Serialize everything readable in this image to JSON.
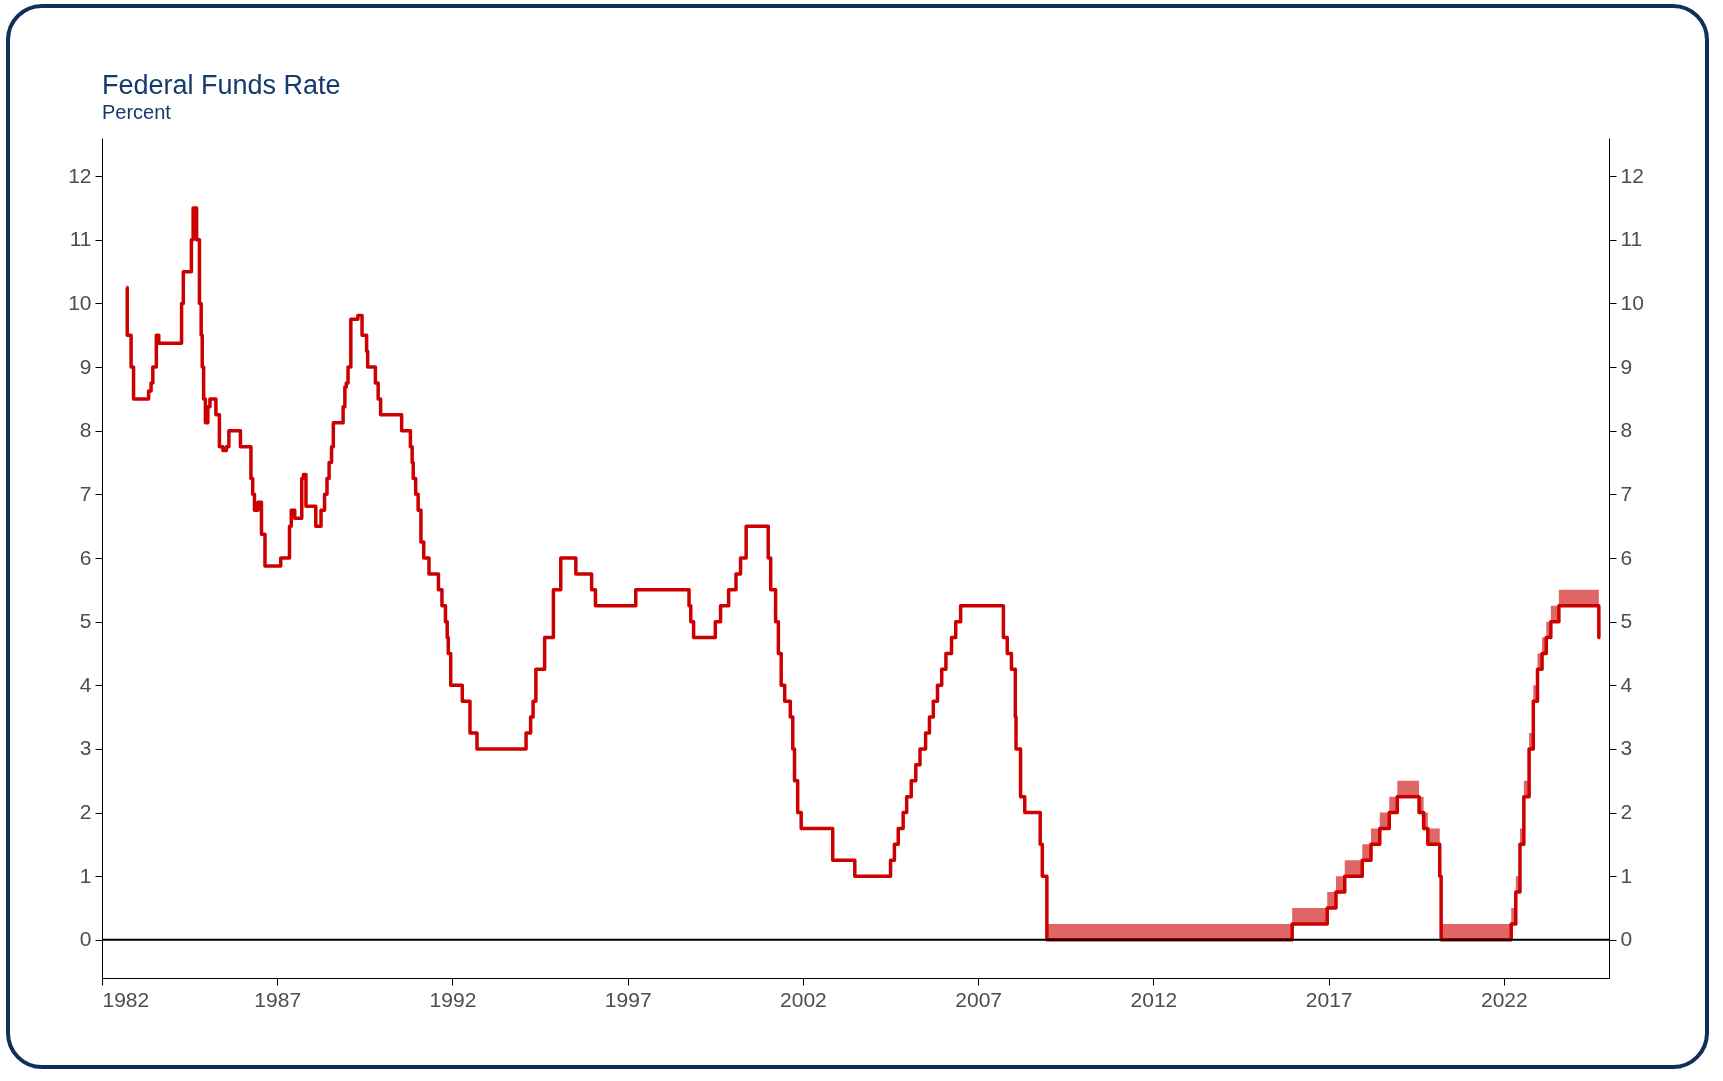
{
  "chart_data": {
    "type": "step",
    "title": "Federal Funds Rate",
    "subtitle": "Percent",
    "x": [
      1982.7,
      1982.72,
      1982.83,
      1982.9,
      1983.33,
      1983.4,
      1983.45,
      1983.55,
      1983.62,
      1984.27,
      1984.32,
      1984.55,
      1984.6,
      1984.7,
      1984.78,
      1984.83,
      1984.86,
      1984.9,
      1984.95,
      1985.02,
      1985.08,
      1985.25,
      1985.35,
      1985.45,
      1985.55,
      1985.62,
      1985.95,
      1986.25,
      1986.3,
      1986.35,
      1986.45,
      1986.55,
      1986.65,
      1987.1,
      1987.35,
      1987.4,
      1987.5,
      1987.7,
      1987.75,
      1987.82,
      1988.1,
      1988.25,
      1988.35,
      1988.42,
      1988.48,
      1988.55,
      1988.6,
      1988.88,
      1988.93,
      1988.97,
      1989.02,
      1989.1,
      1989.3,
      1989.42,
      1989.55,
      1989.58,
      1989.8,
      1989.88,
      1989.95,
      1990.55,
      1990.8,
      1990.85,
      1990.88,
      1990.95,
      1991.02,
      1991.1,
      1991.18,
      1991.33,
      1991.6,
      1991.7,
      1991.8,
      1991.85,
      1991.88,
      1991.95,
      1992.28,
      1992.5,
      1992.7,
      1994.1,
      1994.23,
      1994.3,
      1994.38,
      1994.63,
      1994.88,
      1995.09,
      1995.52,
      1995.97,
      1996.08,
      1997.23,
      1998.75,
      1998.8,
      1998.88,
      1999.5,
      1999.65,
      1999.88,
      2000.09,
      2000.22,
      2000.38,
      2001.01,
      2001.08,
      2001.22,
      2001.3,
      2001.38,
      2001.48,
      2001.64,
      2001.71,
      2001.76,
      2001.85,
      2001.95,
      2002.85,
      2003.48,
      2004.5,
      2004.61,
      2004.72,
      2004.86,
      2004.96,
      2005.09,
      2005.22,
      2005.34,
      2005.5,
      2005.61,
      2005.72,
      2005.84,
      2005.96,
      2006.08,
      2006.24,
      2006.36,
      2006.5,
      2007.72,
      2007.83,
      2007.95,
      2008.06,
      2008.08,
      2008.21,
      2008.33,
      2008.77,
      2008.83,
      2008.96,
      2015.96,
      2016.96,
      2017.21,
      2017.46,
      2017.96,
      2018.21,
      2018.46,
      2018.73,
      2018.96,
      2019.58,
      2019.71,
      2019.83,
      2020.17,
      2020.21,
      2022.21,
      2022.34,
      2022.46,
      2022.57,
      2022.72,
      2022.84,
      2022.96,
      2023.09,
      2023.21,
      2023.34,
      2023.57,
      2024.71,
      2024.75
    ],
    "series": [
      {
        "color": "#cc0000",
        "values": [
          10.25,
          9.5,
          9,
          8.5,
          8.625,
          8.75,
          9,
          9.5,
          9.375,
          10,
          10.5,
          11,
          11.5,
          11,
          10,
          9.5,
          9,
          8.5,
          8.125,
          8.375,
          8.5,
          8.25,
          7.75,
          7.6875,
          7.75,
          8,
          7.75,
          7.25,
          7,
          6.75,
          6.875,
          6.375,
          5.875,
          6,
          6.5,
          6.75,
          6.625,
          7.25,
          7.3125,
          6.8125,
          6.5,
          6.75,
          7,
          7.25,
          7.5,
          7.75,
          8.125,
          8.375,
          8.6875,
          8.75,
          9,
          9.75,
          9.8125,
          9.5,
          9.25,
          9,
          8.75,
          8.5,
          8.25,
          8,
          7.75,
          7.5,
          7.25,
          7,
          6.75,
          6.25,
          6,
          5.75,
          5.5,
          5.25,
          5,
          4.75,
          4.5,
          4,
          3.75,
          3.25,
          3,
          3.25,
          3.5,
          3.75,
          4.25,
          4.75,
          5.5,
          6,
          5.75,
          5.5,
          5.25,
          5.5,
          5.25,
          5,
          4.75,
          5,
          5.25,
          5.5,
          5.75,
          6,
          6.5,
          6,
          5.5,
          5,
          4.5,
          4,
          3.75,
          3.5,
          3,
          2.5,
          2,
          1.75,
          1.25,
          1,
          1.25,
          1.5,
          1.75,
          2,
          2.25,
          2.5,
          2.75,
          3,
          3.25,
          3.5,
          3.75,
          4,
          4.25,
          4.5,
          4.75,
          5,
          5.25,
          4.75,
          4.5,
          4.25,
          3.5,
          3,
          2.25,
          2,
          1.5,
          1,
          0,
          0.25,
          0.5,
          0.75,
          1,
          1.25,
          1.5,
          1.75,
          2,
          2.25,
          2,
          1.75,
          1.5,
          1,
          0,
          0.25,
          0.75,
          1.5,
          2.25,
          3,
          3.75,
          4.25,
          4.5,
          4.75,
          5,
          5.25,
          4.75,
          4.75
        ],
        "lower": [
          null,
          null,
          null,
          null,
          null,
          null,
          null,
          null,
          null,
          null,
          null,
          null,
          null,
          null,
          null,
          null,
          null,
          null,
          null,
          null,
          null,
          null,
          null,
          null,
          null,
          null,
          null,
          null,
          null,
          null,
          null,
          null,
          null,
          null,
          null,
          null,
          null,
          null,
          null,
          null,
          null,
          null,
          null,
          null,
          null,
          null,
          null,
          null,
          null,
          null,
          null,
          null,
          null,
          null,
          null,
          null,
          null,
          null,
          null,
          null,
          null,
          null,
          null,
          null,
          null,
          null,
          null,
          null,
          null,
          null,
          null,
          null,
          null,
          null,
          null,
          null,
          null,
          null,
          null,
          null,
          null,
          null,
          null,
          null,
          null,
          null,
          null,
          null,
          null,
          null,
          null,
          null,
          null,
          null,
          null,
          null,
          null,
          null,
          null,
          null,
          null,
          null,
          null,
          null,
          null,
          null,
          null,
          null,
          null,
          null,
          null,
          null,
          null,
          null,
          null,
          null,
          null,
          null,
          null,
          null,
          null,
          null,
          null,
          null,
          null,
          null,
          null,
          null,
          null,
          null,
          null,
          null,
          null,
          null,
          null,
          null,
          0,
          0.25,
          0.5,
          0.75,
          1,
          1.25,
          1.5,
          1.75,
          2,
          2.25,
          2,
          1.75,
          1.5,
          1,
          0,
          0.25,
          0.75,
          1.5,
          2.25,
          3,
          3.75,
          4.25,
          4.5,
          4.75,
          5,
          5.25,
          4.75,
          4.75
        ],
        "upper": [
          null,
          null,
          null,
          null,
          null,
          null,
          null,
          null,
          null,
          null,
          null,
          null,
          null,
          null,
          null,
          null,
          null,
          null,
          null,
          null,
          null,
          null,
          null,
          null,
          null,
          null,
          null,
          null,
          null,
          null,
          null,
          null,
          null,
          null,
          null,
          null,
          null,
          null,
          null,
          null,
          null,
          null,
          null,
          null,
          null,
          null,
          null,
          null,
          null,
          null,
          null,
          null,
          null,
          null,
          null,
          null,
          null,
          null,
          null,
          null,
          null,
          null,
          null,
          null,
          null,
          null,
          null,
          null,
          null,
          null,
          null,
          null,
          null,
          null,
          null,
          null,
          null,
          null,
          null,
          null,
          null,
          null,
          null,
          null,
          null,
          null,
          null,
          null,
          null,
          null,
          null,
          null,
          null,
          null,
          null,
          null,
          null,
          null,
          null,
          null,
          null,
          null,
          null,
          null,
          null,
          null,
          null,
          null,
          null,
          null,
          null,
          null,
          null,
          null,
          null,
          null,
          null,
          null,
          null,
          null,
          null,
          null,
          null,
          null,
          null,
          null,
          null,
          null,
          null,
          null,
          null,
          null,
          null,
          null,
          null,
          null,
          0.25,
          0.5,
          0.75,
          1,
          1.25,
          1.5,
          1.75,
          2,
          2.25,
          2.5,
          2.25,
          2,
          1.75,
          1.25,
          0.25,
          0.5,
          1,
          1.75,
          2.5,
          3.25,
          4,
          4.5,
          4.75,
          5,
          5.25,
          5.5,
          5,
          5
        ]
      }
    ],
    "xlim": [
      1982,
      2025
    ],
    "xticks": [
      1982,
      1987,
      1992,
      1997,
      2002,
      2007,
      2012,
      2017,
      2022
    ],
    "ylim": [
      -0.6,
      12.6
    ],
    "yticks": [
      0,
      1,
      2,
      3,
      4,
      5,
      6,
      7,
      8,
      9,
      10,
      11,
      12
    ],
    "y2lim": [
      -0.6,
      12.6
    ],
    "y2ticks": [
      0,
      1,
      2,
      3,
      4,
      5,
      6,
      7,
      8,
      9,
      10,
      11,
      12
    ],
    "ref_lines": [
      {
        "axis": "y",
        "value": 0,
        "color": "#000000"
      }
    ],
    "grid": false,
    "line_style": "solid",
    "marker": "none"
  }
}
